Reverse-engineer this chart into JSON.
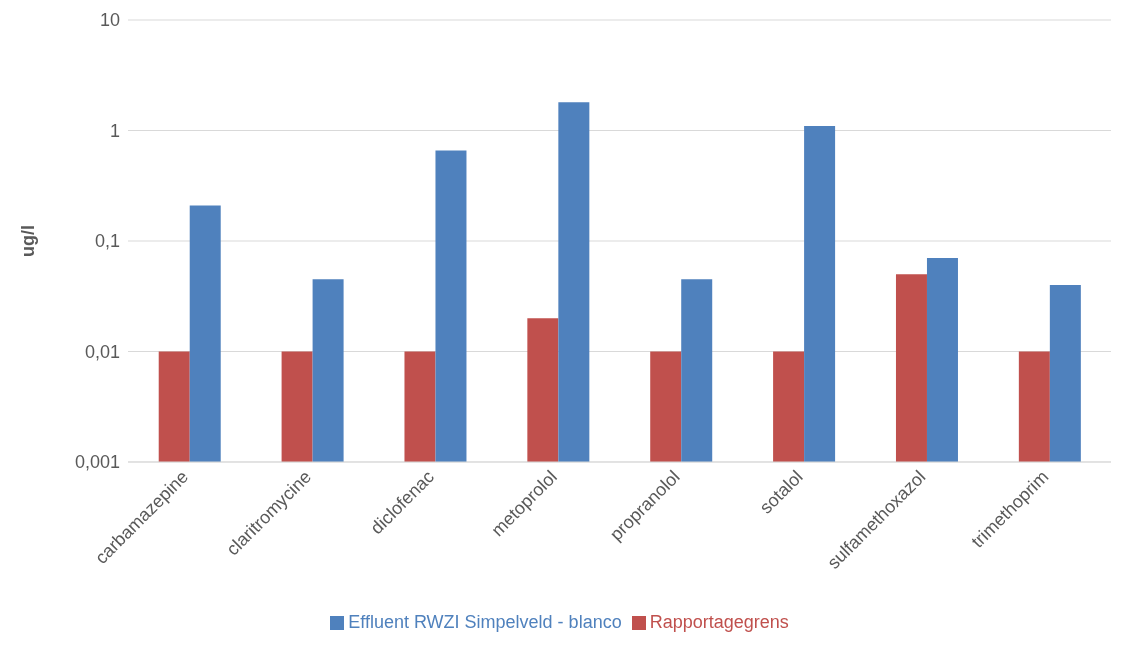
{
  "chart_data": {
    "type": "bar",
    "ylabel": "ug/l",
    "log": true,
    "grid": "y",
    "legend": "bottom",
    "categories": [
      "carbamazepine",
      "claritromycine",
      "diclofenac",
      "metoprolol",
      "propranolol",
      "sotalol",
      "sulfamethoxazol",
      "trimethoprim"
    ],
    "series": [
      {
        "name": "Rapportagegrens",
        "color": "#c0504d",
        "values": [
          0.01,
          0.01,
          0.01,
          0.02,
          0.01,
          0.01,
          0.05,
          0.01
        ]
      },
      {
        "name": "Effluent RWZI Simpelveld - blanco",
        "color": "#4f81bd",
        "values": [
          0.21,
          0.045,
          0.66,
          1.8,
          0.045,
          1.1,
          0.07,
          0.04
        ]
      }
    ],
    "ylim": [
      0.001,
      10
    ],
    "yticks": [
      {
        "value": 0.001,
        "label": "0,001"
      },
      {
        "value": 0.01,
        "label": "0,01"
      },
      {
        "value": 0.1,
        "label": "0,1"
      },
      {
        "value": 1,
        "label": "1"
      },
      {
        "value": 10,
        "label": "10"
      }
    ]
  }
}
